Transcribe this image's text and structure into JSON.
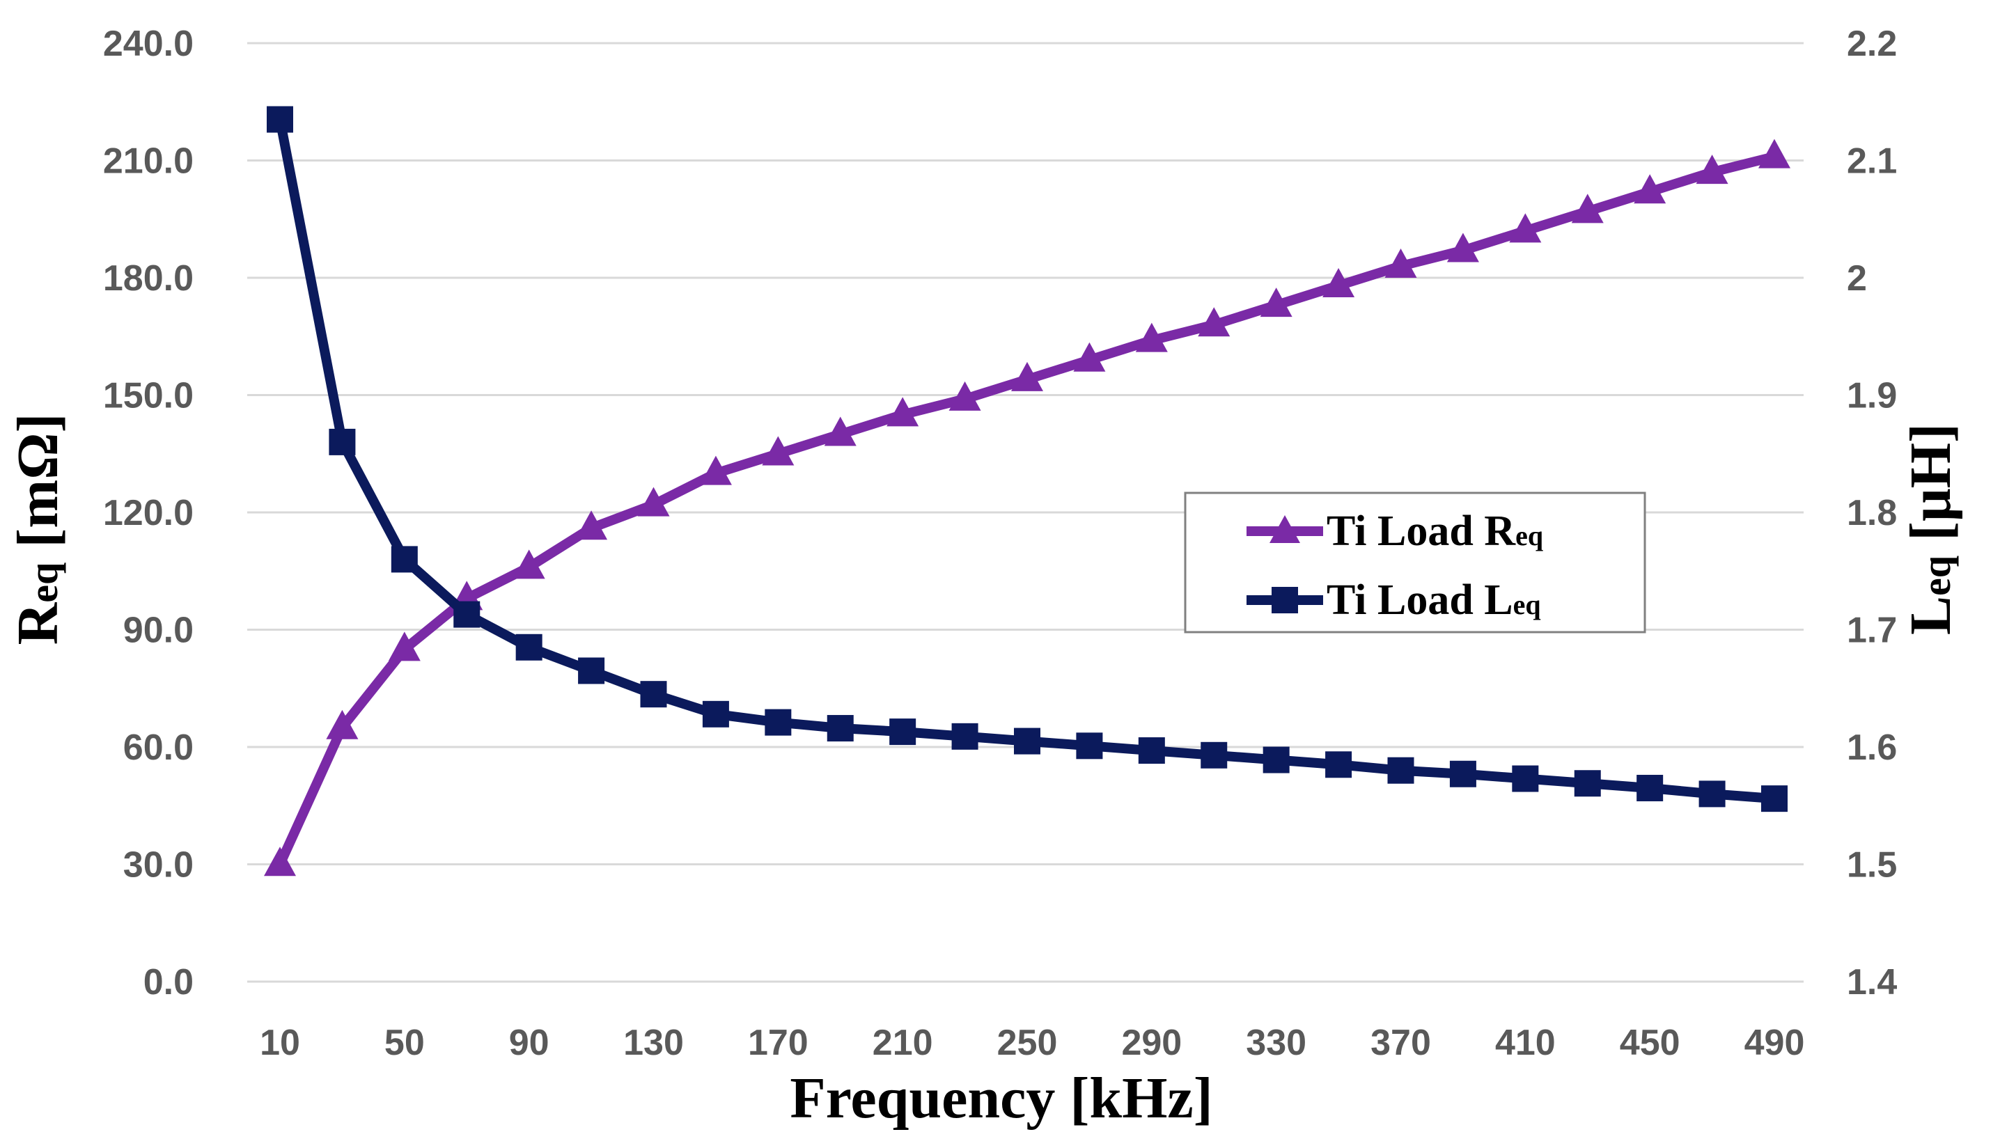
{
  "chart_data": {
    "type": "line",
    "title": "",
    "xlabel": "Frequency [kHz]",
    "ylabel_left": {
      "main": "R",
      "sub": "eq",
      "unit": " [mΩ]"
    },
    "ylabel_right": {
      "main": "L",
      "sub": "eq",
      "unit": " [μH]"
    },
    "x": [
      10,
      30,
      50,
      70,
      90,
      110,
      130,
      150,
      170,
      190,
      210,
      230,
      250,
      270,
      290,
      310,
      330,
      350,
      370,
      390,
      410,
      430,
      450,
      470,
      490
    ],
    "x_tick_labels": [
      "10",
      "50",
      "90",
      "130",
      "170",
      "210",
      "250",
      "290",
      "330",
      "370",
      "410",
      "450",
      "490"
    ],
    "y_left_ticks": [
      "0.0",
      "30.0",
      "60.0",
      "90.0",
      "120.0",
      "150.0",
      "180.0",
      "210.0",
      "240.0"
    ],
    "y_left_lim": [
      0,
      240
    ],
    "y_right_ticks": [
      "1.4",
      "1.5",
      "1.6",
      "1.7",
      "1.8",
      "1.9",
      "2",
      "2.1",
      "2.2"
    ],
    "y_right_lim": [
      1.4,
      2.2
    ],
    "grid": true,
    "legend_position": "center-right",
    "series": [
      {
        "name": "Ti Load Req",
        "label_main": "Ti Load R",
        "label_sub": "eq",
        "axis": "left",
        "marker": "triangle",
        "color": "#7a2aa6",
        "values": [
          30,
          65,
          85,
          98,
          106,
          116,
          122,
          130,
          135,
          140,
          145,
          149,
          154,
          159,
          164,
          168,
          173,
          178,
          183,
          187,
          192,
          197,
          202,
          207,
          211
        ]
      },
      {
        "name": "Ti Load Leq",
        "label_main": "Ti Load L",
        "label_sub": "eq",
        "axis": "right",
        "marker": "square",
        "color": "#0b1a5c",
        "values": [
          2.135,
          1.86,
          1.76,
          1.713,
          1.685,
          1.665,
          1.645,
          1.628,
          1.621,
          1.616,
          1.613,
          1.609,
          1.605,
          1.601,
          1.597,
          1.593,
          1.589,
          1.585,
          1.58,
          1.577,
          1.573,
          1.569,
          1.565,
          1.56,
          1.556
        ]
      }
    ]
  }
}
